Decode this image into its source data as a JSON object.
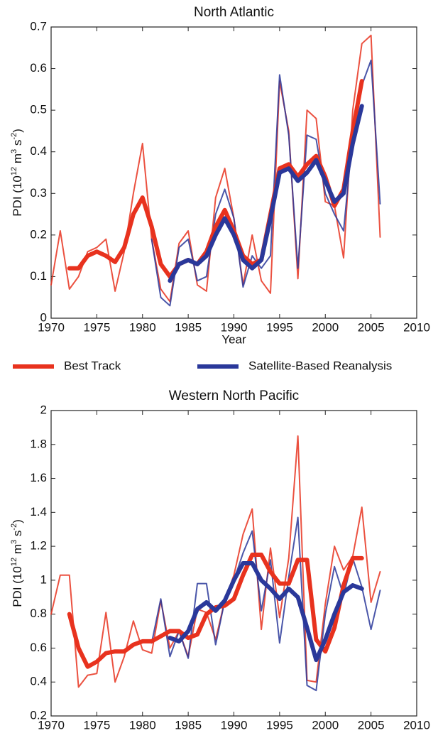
{
  "chart_data": [
    {
      "type": "line",
      "title": "North Atlantic",
      "xlabel": "Year",
      "ylabel_parts": [
        "PDI (10",
        "12",
        " m",
        "3",
        " s",
        "-2",
        ")"
      ],
      "xlim": [
        1970,
        2010
      ],
      "xticks": [
        1970,
        1975,
        1980,
        1985,
        1990,
        1995,
        2000,
        2005,
        2010
      ],
      "ylim": [
        0,
        0.7
      ],
      "yticks": [
        0,
        0.1,
        0.2,
        0.3,
        0.4,
        0.5,
        0.6,
        0.7
      ],
      "grid": false,
      "legend": "below",
      "x": [
        1970,
        1971,
        1972,
        1973,
        1974,
        1975,
        1976,
        1977,
        1978,
        1979,
        1980,
        1981,
        1982,
        1983,
        1984,
        1985,
        1986,
        1987,
        1988,
        1989,
        1990,
        1991,
        1992,
        1993,
        1994,
        1995,
        1996,
        1997,
        1998,
        1999,
        2000,
        2001,
        2002,
        2003,
        2004,
        2005,
        2006
      ],
      "series": [
        {
          "name": "Best Track",
          "color": "#e8321e",
          "values": [
            0.08,
            0.21,
            0.07,
            0.1,
            0.16,
            0.17,
            0.19,
            0.065,
            0.16,
            0.3,
            0.42,
            0.19,
            0.07,
            0.04,
            0.18,
            0.21,
            0.08,
            0.065,
            0.29,
            0.36,
            0.24,
            0.08,
            0.2,
            0.09,
            0.06,
            0.57,
            0.45,
            0.095,
            0.5,
            0.48,
            0.28,
            0.27,
            0.145,
            0.5,
            0.66,
            0.68,
            0.195
          ],
          "smoothed": [
            null,
            null,
            0.12,
            0.12,
            0.15,
            0.16,
            0.15,
            0.135,
            0.17,
            0.25,
            0.29,
            0.22,
            0.13,
            0.1,
            0.13,
            0.14,
            0.13,
            0.16,
            0.22,
            0.26,
            0.21,
            0.15,
            0.13,
            0.14,
            0.25,
            0.36,
            0.37,
            0.34,
            0.37,
            0.39,
            0.34,
            0.27,
            0.31,
            0.45,
            0.57,
            null,
            null
          ]
        },
        {
          "name": "Satellite-Based Reanalysis",
          "color": "#2a389a",
          "values": [
            null,
            null,
            null,
            null,
            null,
            null,
            null,
            null,
            null,
            null,
            null,
            0.19,
            0.05,
            0.03,
            0.17,
            0.19,
            0.09,
            0.1,
            0.25,
            0.31,
            0.24,
            0.075,
            0.15,
            0.12,
            0.15,
            0.585,
            0.44,
            0.12,
            0.44,
            0.43,
            0.3,
            0.25,
            0.21,
            0.44,
            0.56,
            0.62,
            0.275
          ],
          "smoothed": [
            null,
            null,
            null,
            null,
            null,
            null,
            null,
            null,
            null,
            null,
            null,
            null,
            null,
            0.09,
            0.13,
            0.14,
            0.13,
            0.15,
            0.2,
            0.24,
            0.2,
            0.14,
            0.12,
            0.14,
            0.24,
            0.35,
            0.36,
            0.33,
            0.35,
            0.38,
            0.33,
            0.28,
            0.3,
            0.42,
            0.51,
            null,
            null
          ]
        }
      ]
    },
    {
      "type": "line",
      "title": "Western North Pacific",
      "xlabel": "Year",
      "ylabel_parts": [
        "PDI (10",
        "12",
        " m",
        "3",
        " s",
        "-2",
        ")"
      ],
      "xlim": [
        1970,
        2010
      ],
      "xticks": [
        1970,
        1975,
        1980,
        1985,
        1990,
        1995,
        2000,
        2005,
        2010
      ],
      "ylim": [
        0.2,
        2
      ],
      "yticks": [
        0.2,
        0.4,
        0.6,
        0.8,
        1,
        1.2,
        1.4,
        1.6,
        1.8,
        2
      ],
      "grid": false,
      "x": [
        1970,
        1971,
        1972,
        1973,
        1974,
        1975,
        1976,
        1977,
        1978,
        1979,
        1980,
        1981,
        1982,
        1983,
        1984,
        1985,
        1986,
        1987,
        1988,
        1989,
        1990,
        1991,
        1992,
        1993,
        1994,
        1995,
        1996,
        1997,
        1998,
        1999,
        2000,
        2001,
        2002,
        2003,
        2004,
        2005,
        2006
      ],
      "series": [
        {
          "color": "#e8321e",
          "values": [
            0.8,
            1.03,
            1.03,
            0.37,
            0.44,
            0.45,
            0.81,
            0.4,
            0.55,
            0.76,
            0.59,
            0.57,
            0.88,
            0.6,
            0.7,
            0.55,
            0.83,
            0.81,
            0.65,
            0.88,
            1.03,
            1.27,
            1.42,
            0.71,
            1.19,
            0.78,
            1.13,
            1.85,
            0.41,
            0.4,
            0.86,
            1.2,
            1.06,
            1.14,
            1.43,
            0.87,
            1.05
          ],
          "smoothed": [
            null,
            null,
            0.8,
            0.6,
            0.49,
            0.52,
            0.57,
            0.58,
            0.58,
            0.62,
            0.64,
            0.64,
            0.67,
            0.7,
            0.7,
            0.66,
            0.68,
            0.8,
            0.84,
            0.85,
            0.89,
            1.03,
            1.15,
            1.15,
            1.05,
            0.98,
            0.98,
            1.12,
            1.12,
            0.65,
            0.58,
            0.72,
            0.97,
            1.13,
            1.13,
            null,
            null
          ]
        },
        {
          "color": "#2a389a",
          "values": [
            null,
            null,
            null,
            null,
            null,
            null,
            null,
            null,
            null,
            null,
            null,
            0.63,
            0.89,
            0.55,
            0.7,
            0.54,
            0.98,
            0.98,
            0.62,
            0.88,
            1.0,
            1.16,
            1.29,
            0.82,
            1.12,
            0.63,
            1.02,
            1.37,
            0.38,
            0.35,
            0.8,
            1.08,
            0.91,
            1.13,
            0.96,
            0.71,
            0.94
          ],
          "smoothed": [
            null,
            null,
            null,
            null,
            null,
            null,
            null,
            null,
            null,
            null,
            null,
            null,
            null,
            0.66,
            0.64,
            0.7,
            0.83,
            0.87,
            0.82,
            0.88,
            1.0,
            1.1,
            1.1,
            1.0,
            0.95,
            0.89,
            0.95,
            0.9,
            0.72,
            0.53,
            0.65,
            0.8,
            0.93,
            0.97,
            0.95,
            null,
            null
          ]
        }
      ]
    }
  ]
}
